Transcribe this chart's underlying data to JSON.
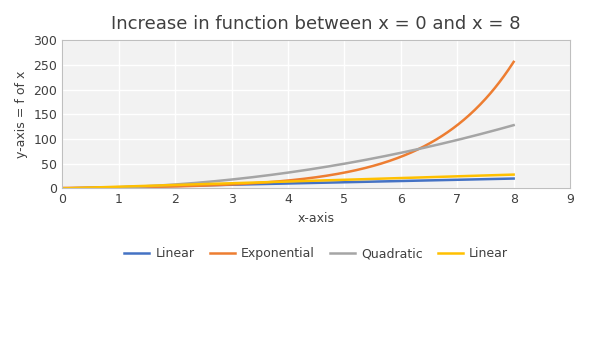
{
  "title": "Increase in function between x = 0 and x = 8",
  "xlabel": "x-axis",
  "ylabel": "y-axis = f of x",
  "xlim": [
    0,
    9
  ],
  "ylim": [
    0,
    300
  ],
  "yticks": [
    0,
    50,
    100,
    150,
    200,
    250,
    300
  ],
  "xticks": [
    0,
    1,
    2,
    3,
    4,
    5,
    6,
    7,
    8,
    9
  ],
  "series": [
    {
      "label": "Linear",
      "color": "#4472C4",
      "type": "linear",
      "params": [
        2.5,
        0
      ]
    },
    {
      "label": "Exponential",
      "color": "#ED7D31",
      "type": "exponential",
      "params": [
        2.0
      ]
    },
    {
      "label": "Quadratic",
      "color": "#A5A5A5",
      "type": "quadratic",
      "params": [
        2.0,
        0,
        0
      ]
    },
    {
      "label": "Linear",
      "color": "#FFC000",
      "type": "linear",
      "params": [
        3.5,
        0
      ]
    }
  ],
  "background_color": "#FFFFFF",
  "plot_bg_color": "#F2F2F2",
  "grid_color": "#FFFFFF",
  "title_fontsize": 13,
  "axis_label_fontsize": 9,
  "tick_fontsize": 9,
  "legend_fontsize": 9,
  "line_width": 1.8
}
